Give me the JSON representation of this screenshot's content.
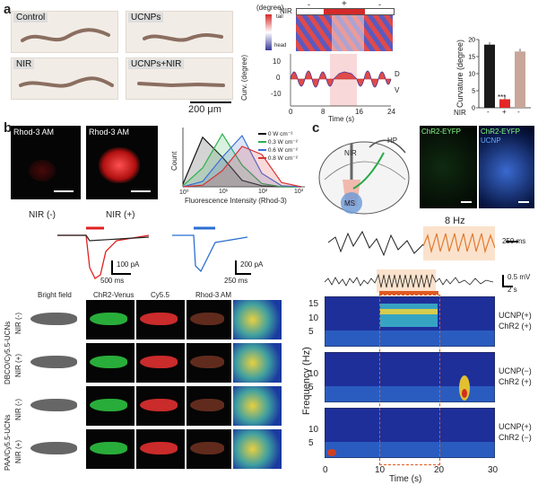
{
  "panel_a": {
    "label": "a",
    "tiles": [
      "Control",
      "UCNPs",
      "NIR",
      "UCNPs+NIR"
    ],
    "scalebar": "200 μm",
    "kymo": {
      "degree_unit": "(degree)",
      "tail": "tail",
      "head": "head",
      "nir": "NIR",
      "nir_states": [
        "-",
        "+",
        "-"
      ]
    },
    "curv_trace": {
      "ylabel": "Curv. (degree)",
      "yticks": [
        "10",
        "0",
        "-10"
      ],
      "xticks": [
        "0",
        "8",
        "16",
        "24"
      ],
      "xlabel": "Time (s)",
      "d": "D",
      "v": "V"
    },
    "bar": {
      "ylabel": "Curvature (degree)",
      "yticks": [
        "0",
        "5",
        "10",
        "15",
        "20"
      ],
      "nir_label": "NIR",
      "nir_states": [
        "-",
        "+",
        "-"
      ],
      "sig": "***"
    }
  },
  "panel_b": {
    "label": "b",
    "micro_labels": [
      "Rhod-3  AM",
      "Rhod-3  AM"
    ],
    "nir_captions": [
      "NIR (-)",
      "NIR (+)"
    ],
    "hist": {
      "ylabel": "Count",
      "xlabel": "Fluorescence Intensity (Rhod-3)",
      "xticks": [
        "10⁰",
        "10¹",
        "10²",
        "10³"
      ],
      "legend": [
        "0  W cm⁻²",
        "0.3 W cm⁻²",
        "0.6 W cm⁻²",
        "0.8 W cm⁻²"
      ],
      "colors": [
        "#111111",
        "#2bb24c",
        "#3b6fd8",
        "#d93434"
      ]
    },
    "currents": {
      "left_scale_y": "100 pA",
      "left_scale_x": "500 ms",
      "right_scale_y": "200 pA",
      "right_scale_x": "250 ms"
    },
    "imaging": {
      "columns": [
        "Bright field",
        "ChR2-Venus",
        "Cy5.5",
        "Rhod-3 AM"
      ],
      "group_labels": [
        "DBCO/Cy5.5-UCNs",
        "PAA/Cy5.5-UCNs"
      ],
      "row_labels": [
        "NIR (-)",
        "NIR (+)",
        "NIR (-)",
        "NIR (+)"
      ]
    }
  },
  "panel_c": {
    "label": "c",
    "brain_labels": [
      "NIR",
      "HP",
      "MS"
    ],
    "fluor_labels": [
      "ChR2-EYFP",
      "ChR2-EYFP",
      "UCNP"
    ],
    "trace": {
      "hz": "8 Hz",
      "scale_t": "250 ms",
      "scale_v": "0.5 mV",
      "scale_t2": "2 s"
    },
    "spectro": {
      "ylabel": "Frequency (Hz)",
      "xlabel": "Time (s)",
      "xticks": [
        "0",
        "10",
        "20",
        "30"
      ],
      "yticks": [
        "15",
        "10",
        "5"
      ],
      "conditions": [
        [
          "UCNP(+)",
          "ChR2 (+)"
        ],
        [
          "UCNP(−)",
          "ChR2 (+)"
        ],
        [
          "UCNP(+)",
          "ChR2 (−)"
        ]
      ]
    }
  },
  "chart_data": [
    {
      "type": "bar",
      "ylabel": "Curvature (degree)",
      "categories": [
        "-",
        "+",
        "-"
      ],
      "values": [
        18.5,
        2.5,
        16.5
      ],
      "ylim": [
        0,
        20
      ],
      "colors": [
        "#1a1a1a",
        "#e32626",
        "#c9a69a"
      ]
    },
    {
      "type": "area",
      "ylabel": "Fluorescence Intensity (Rhod-3)",
      "x": [
        0,
        0.5,
        1,
        1.5,
        2,
        2.5,
        3
      ],
      "series": [
        {
          "name": "0  W cm⁻²",
          "values": [
            0.05,
            0.92,
            0.55,
            0.12,
            0.02,
            0,
            0
          ]
        },
        {
          "name": "0.3 W cm⁻²",
          "values": [
            0.02,
            0.35,
            0.98,
            0.4,
            0.06,
            0,
            0
          ]
        },
        {
          "name": "0.6 W cm⁻²",
          "values": [
            0,
            0.1,
            0.55,
            0.95,
            0.25,
            0.02,
            0
          ]
        },
        {
          "name": "0.8 W cm⁻²",
          "values": [
            0,
            0.03,
            0.3,
            0.75,
            0.6,
            0.08,
            0
          ]
        }
      ]
    }
  ]
}
